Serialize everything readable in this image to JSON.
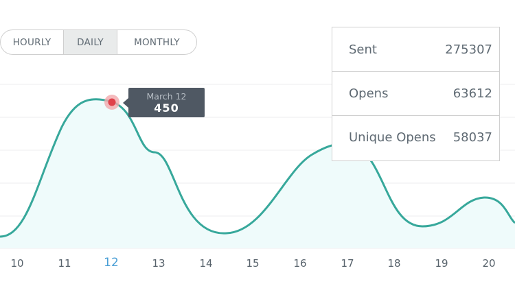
{
  "range_selector": {
    "options": [
      "HOURLY",
      "DAILY",
      "MONTHLY"
    ],
    "selected": "DAILY"
  },
  "stats": [
    {
      "label": "Sent",
      "value": "275307"
    },
    {
      "label": "Opens",
      "value": "63612"
    },
    {
      "label": "Unique Opens",
      "value": "58037"
    }
  ],
  "tooltip": {
    "date": "March 12",
    "value": "450"
  },
  "colors": {
    "line": "#37a89b",
    "fill": "#effbfb",
    "marker": "#e0404a",
    "accent": "#4a9fd6"
  },
  "chart_data": {
    "type": "area",
    "x": [
      "10",
      "11",
      "12",
      "13",
      "14",
      "15",
      "16",
      "17",
      "18",
      "19",
      "20"
    ],
    "highlighted": "12",
    "grid": true
  }
}
